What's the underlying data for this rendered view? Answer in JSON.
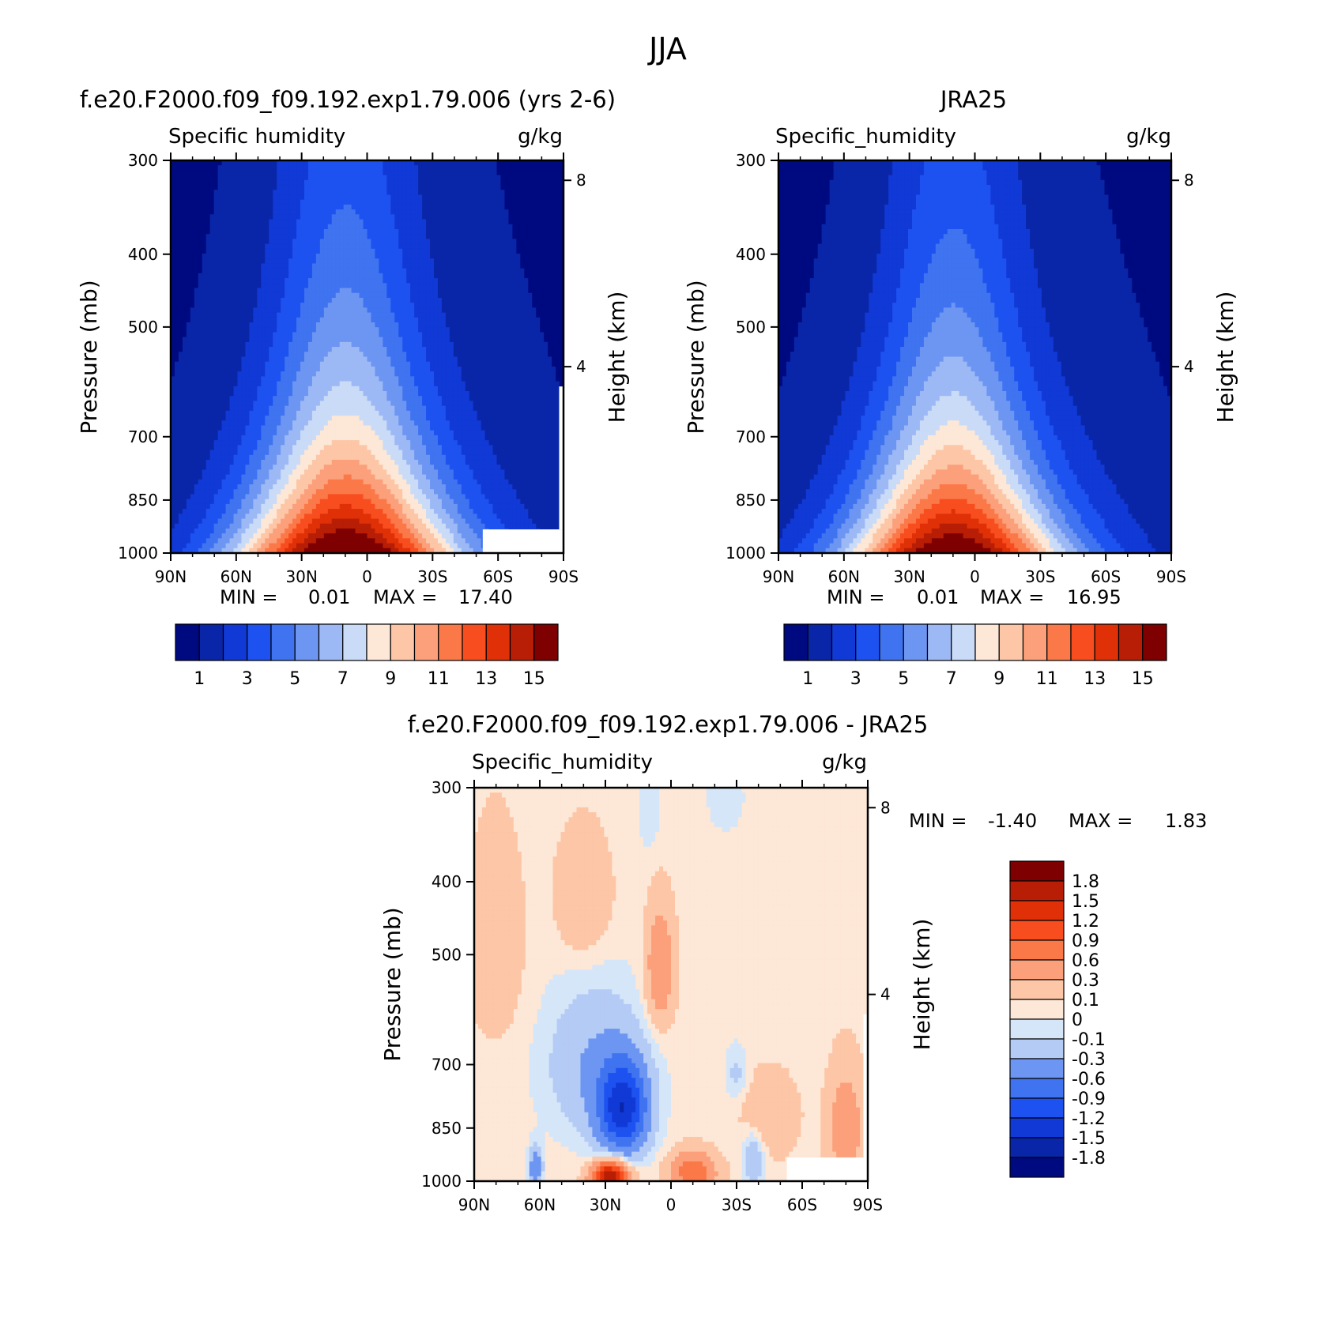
{
  "page_title": "JJA",
  "colors": {
    "seq": [
      "#000a80",
      "#0a26a8",
      "#1139d6",
      "#1d52f0",
      "#3f73f0",
      "#6d96f2",
      "#9db9f5",
      "#c9dbf7",
      "#fde7d6",
      "#fcc6a7",
      "#fba07b",
      "#fb7848",
      "#f84e1f",
      "#e03007",
      "#b71e05",
      "#7f0000"
    ],
    "diff": [
      "#000a80",
      "#0a26a8",
      "#1139d6",
      "#1d52f0",
      "#3f73f0",
      "#6d96f2",
      "#b4cbf5",
      "#d6e6f9",
      "#fde7d6",
      "#fcc6a7",
      "#fba07b",
      "#fb7848",
      "#f84e1f",
      "#e03007",
      "#b71e05",
      "#7f0000"
    ]
  },
  "chart_data": [
    {
      "type": "heatmap",
      "title": "f.e20.F2000.f09_f09.192.exp1.79.006 (yrs 2-6)",
      "subtitle_left": "Specific humidity",
      "units": "g/kg",
      "ylabel": "Pressure (mb)",
      "ylabel_right": "Height (km)",
      "x_ticks": [
        "90N",
        "60N",
        "30N",
        "0",
        "30S",
        "60S",
        "90S"
      ],
      "y_ticks": [
        "300",
        "400",
        "500",
        "700",
        "850",
        "1000"
      ],
      "y_right_ticks": [
        "8",
        "4"
      ],
      "ylim": [
        1000,
        300
      ],
      "xlim": [
        90,
        -90
      ],
      "min_label": "MIN =",
      "min_value": "0.01",
      "max_label": "MAX =",
      "max_value": "17.40",
      "colorbar_labels": [
        "1",
        "3",
        "5",
        "7",
        "9",
        "11",
        "13",
        "15"
      ],
      "levels": [
        1,
        2,
        3,
        4,
        5,
        6,
        7,
        8,
        9,
        10,
        11,
        12,
        13,
        14,
        15
      ],
      "field": {
        "peak_lat": 10,
        "peak_value": 17.4,
        "surface_width": 48,
        "scale_height_p": 420,
        "upper_value": 0.6
      }
    },
    {
      "type": "heatmap",
      "title": "JRA25",
      "subtitle_left": "Specific_humidity",
      "units": "g/kg",
      "ylabel": "Pressure (mb)",
      "ylabel_right": "Height (km)",
      "x_ticks": [
        "90N",
        "60N",
        "30N",
        "0",
        "30S",
        "60S",
        "90S"
      ],
      "y_ticks": [
        "300",
        "400",
        "500",
        "700",
        "850",
        "1000"
      ],
      "y_right_ticks": [
        "8",
        "4"
      ],
      "ylim": [
        1000,
        300
      ],
      "xlim": [
        90,
        -90
      ],
      "min_label": "MIN =",
      "min_value": "0.01",
      "max_label": "MAX =",
      "max_value": "16.95",
      "colorbar_labels": [
        "1",
        "3",
        "5",
        "7",
        "9",
        "11",
        "13",
        "15"
      ],
      "levels": [
        1,
        2,
        3,
        4,
        5,
        6,
        7,
        8,
        9,
        10,
        11,
        12,
        13,
        14,
        15
      ],
      "field": {
        "peak_lat": 10,
        "peak_value": 16.95,
        "surface_width": 46,
        "scale_height_p": 410,
        "upper_value": 0.6
      }
    },
    {
      "type": "heatmap",
      "title": "f.e20.F2000.f09_f09.192.exp1.79.006 - JRA25",
      "subtitle_left": "Specific_humidity",
      "units": "g/kg",
      "ylabel": "Pressure (mb)",
      "ylabel_right": "Height (km)",
      "x_ticks": [
        "90N",
        "60N",
        "30N",
        "0",
        "30S",
        "60S",
        "90S"
      ],
      "y_ticks": [
        "300",
        "400",
        "500",
        "700",
        "850",
        "1000"
      ],
      "y_right_ticks": [
        "8",
        "4"
      ],
      "ylim": [
        1000,
        300
      ],
      "xlim": [
        90,
        -90
      ],
      "min_label": "MIN =",
      "min_value": "-1.40",
      "max_label": "MAX =",
      "max_value": "1.83",
      "colorbar_labels": [
        "1.8",
        "1.5",
        "1.2",
        "0.9",
        "0.6",
        "0.3",
        "0.1",
        "0",
        "-0.1",
        "-0.3",
        "-0.6",
        "-0.9",
        "-1.2",
        "-1.5",
        "-1.8"
      ],
      "levels": [
        -1.8,
        -1.5,
        -1.2,
        -0.9,
        -0.6,
        -0.3,
        -0.1,
        0,
        0.1,
        0.3,
        0.6,
        0.9,
        1.2,
        1.5,
        1.8
      ],
      "anomalies": [
        {
          "lat": 22,
          "p": 800,
          "amp": -1.4,
          "wlat": 11,
          "wp": 110
        },
        {
          "lat": 35,
          "p": 700,
          "amp": -0.35,
          "wlat": 22,
          "wp": 160
        },
        {
          "lat": 62,
          "p": 960,
          "amp": -0.6,
          "wlat": 3,
          "wp": 60
        },
        {
          "lat": -38,
          "p": 930,
          "amp": -0.35,
          "wlat": 5,
          "wp": 80
        },
        {
          "lat": -30,
          "p": 720,
          "amp": -0.2,
          "wlat": 5,
          "wp": 60
        },
        {
          "lat": 28,
          "p": 985,
          "amp": 1.7,
          "wlat": 8,
          "wp": 45
        },
        {
          "lat": -10,
          "p": 975,
          "amp": 0.8,
          "wlat": 10,
          "wp": 60
        },
        {
          "lat": 5,
          "p": 520,
          "amp": 0.55,
          "wlat": 6,
          "wp": 90
        },
        {
          "lat": 80,
          "p": 480,
          "amp": 0.2,
          "wlat": 12,
          "wp": 150
        },
        {
          "lat": 40,
          "p": 420,
          "amp": 0.25,
          "wlat": 12,
          "wp": 80
        },
        {
          "lat": -80,
          "p": 850,
          "amp": 0.45,
          "wlat": 8,
          "wp": 150
        },
        {
          "lat": -45,
          "p": 820,
          "amp": 0.25,
          "wlat": 12,
          "wp": 100
        },
        {
          "lat": 10,
          "p": 320,
          "amp": -0.15,
          "wlat": 5,
          "wp": 40
        },
        {
          "lat": -25,
          "p": 310,
          "amp": -0.15,
          "wlat": 8,
          "wp": 30
        }
      ]
    }
  ]
}
